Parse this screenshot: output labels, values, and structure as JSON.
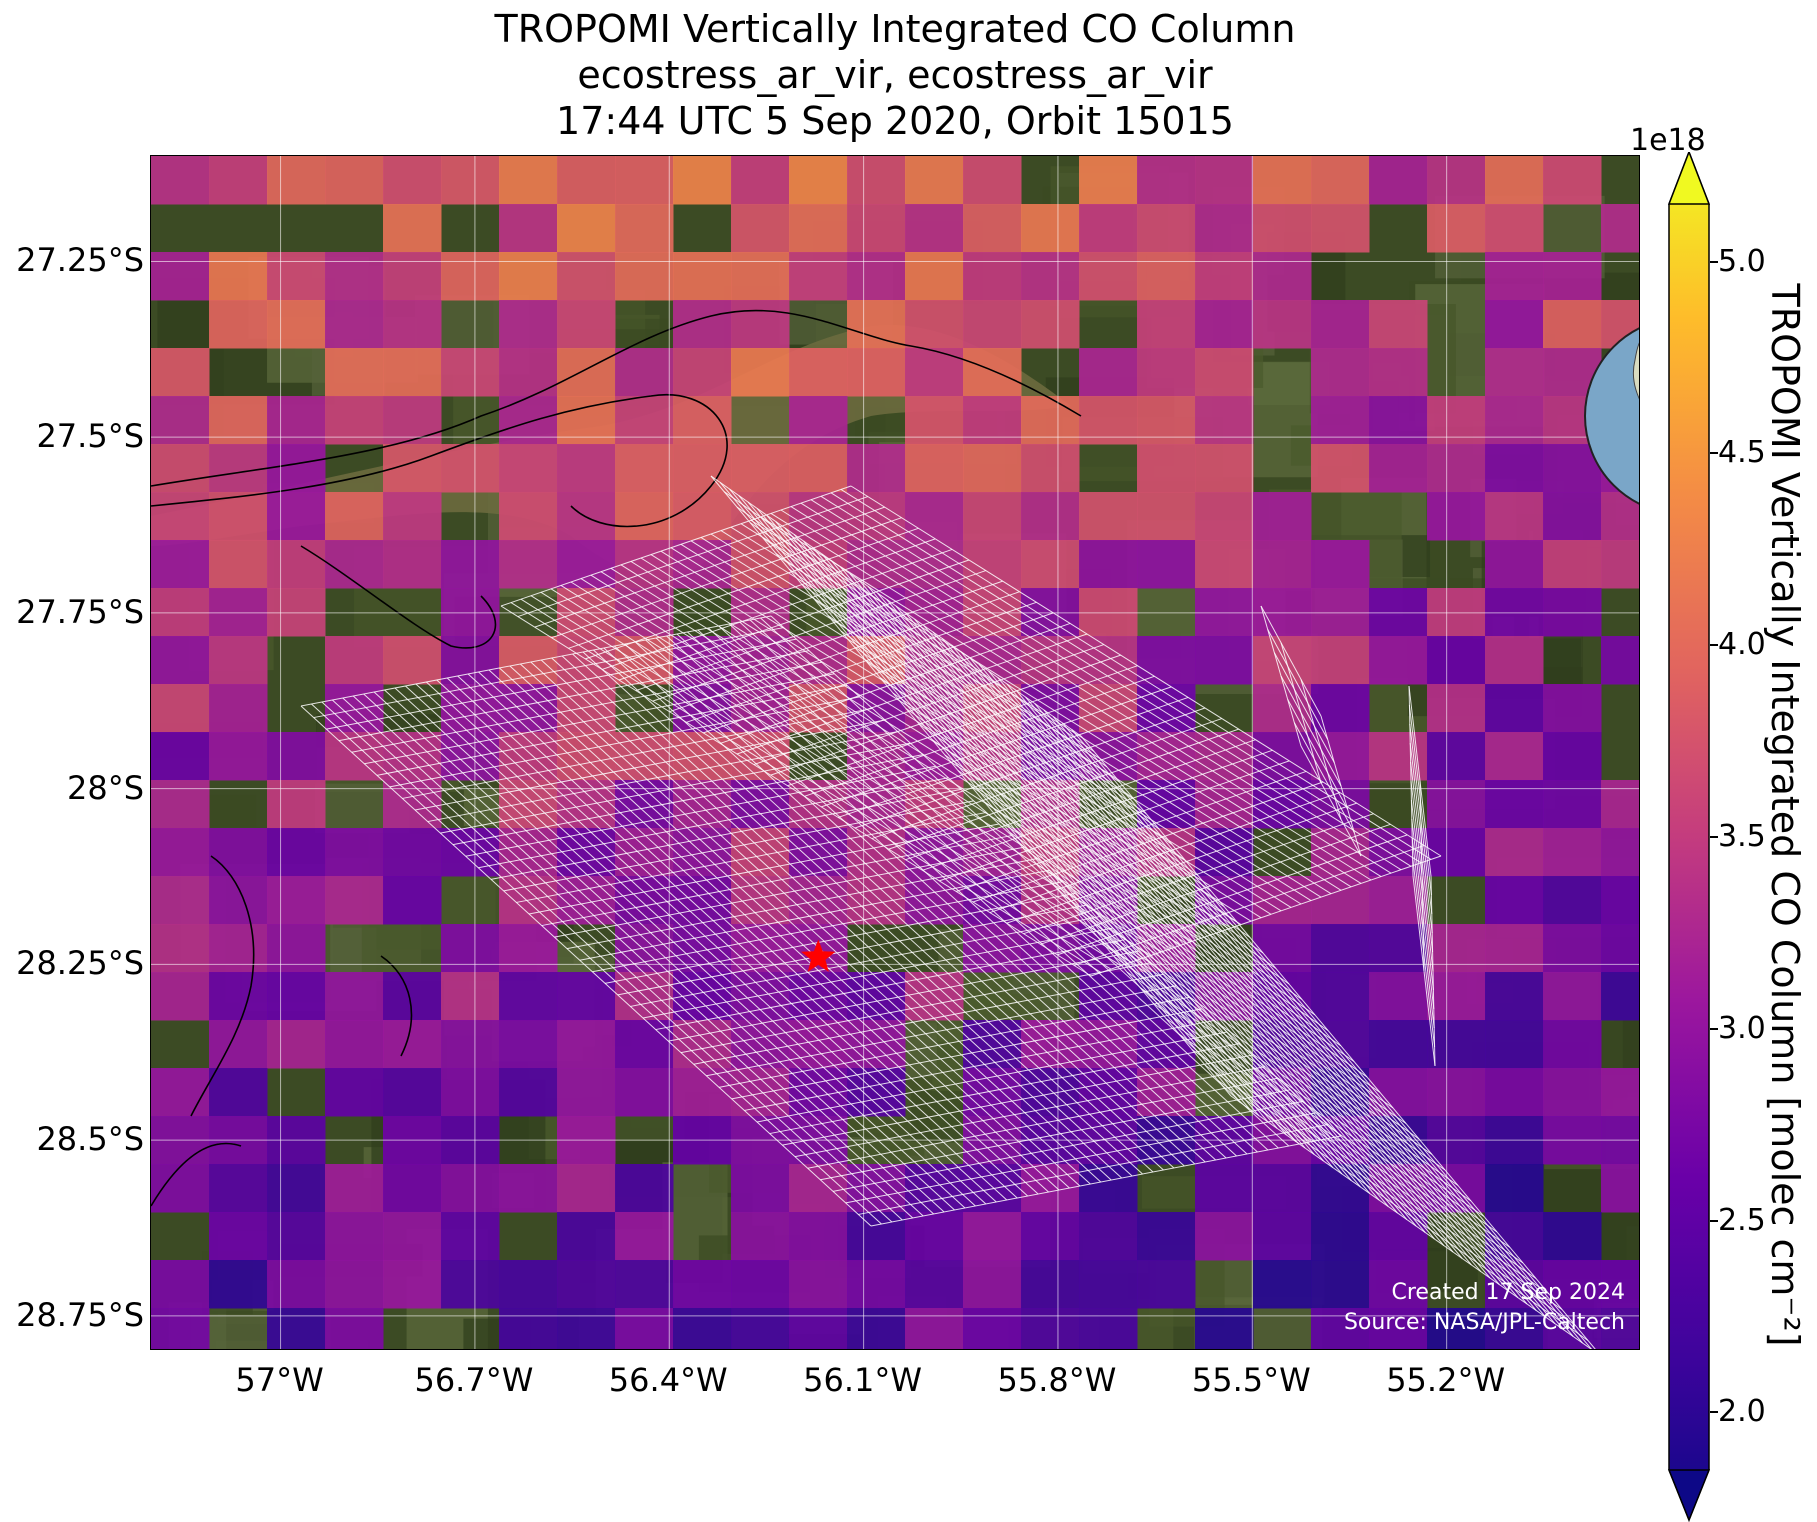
{
  "title": {
    "line1": "TROPOMI Vertically Integrated CO Column",
    "line2": "ecostress_ar_vir, ecostress_ar_vir",
    "line3": "17:44 UTC 5 Sep 2020, Orbit 15015"
  },
  "map": {
    "lon_range": [
      -57.2,
      -54.9
    ],
    "lat_range": [
      -28.8,
      -27.1
    ],
    "lat_ticks": [
      "27.25°S",
      "27.5°S",
      "27.75°S",
      "28°S",
      "28.25°S",
      "28.5°S",
      "28.75°S"
    ],
    "lat_tick_values": [
      -27.25,
      -27.5,
      -27.75,
      -28.0,
      -28.25,
      -28.5,
      -28.75
    ],
    "lon_ticks": [
      "57°W",
      "56.7°W",
      "56.4°W",
      "56.1°W",
      "55.8°W",
      "55.5°W",
      "55.2°W"
    ],
    "lon_tick_values": [
      -57.0,
      -56.7,
      -56.4,
      -56.1,
      -55.8,
      -55.5,
      -55.2
    ],
    "target_marker": {
      "lon": -56.17,
      "lat": -28.24,
      "color": "#ff0000",
      "symbol": "star"
    },
    "footprint_color": "#ffffff",
    "coastline_color": "#000000",
    "basemap": "satellite imagery"
  },
  "credits": {
    "line1": "Created 17 Sep 2024",
    "line2": "Source: NASA/JPL-Caltech"
  },
  "colorbar": {
    "label": "TROPOMI Vertically Integrated CO Column [molec cm⁻²]",
    "exponent": "1e18",
    "ticks": [
      "2.0",
      "2.5",
      "3.0",
      "3.5",
      "4.0",
      "4.5",
      "5.0"
    ],
    "tick_values": [
      2.0,
      2.5,
      3.0,
      3.5,
      4.0,
      4.5,
      5.0
    ],
    "range": [
      1.85,
      5.15
    ],
    "colormap": "plasma",
    "extend": "both"
  },
  "inset_globe": {
    "ocean_color": "#7aa6c8",
    "land_color": "#d9dcc0",
    "marker_color": "#ff0000"
  }
}
